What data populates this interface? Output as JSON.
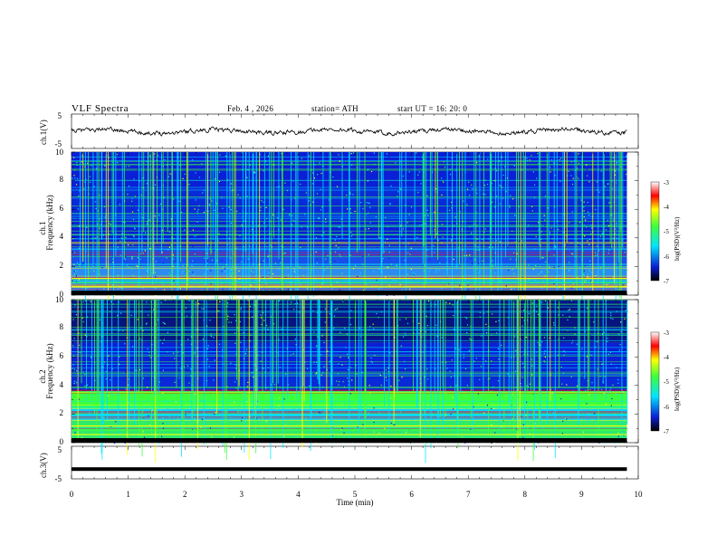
{
  "header": {
    "title": "VLF  Spectra",
    "date": "Feb. 4  , 2026",
    "station": "station= ATH",
    "start": "start  UT  =    16: 20: 0"
  },
  "chart_data": [
    {
      "type": "line",
      "title": "",
      "ylabel": "ch.1(V)",
      "ylim": [
        -5,
        5
      ],
      "yticks": [
        "5",
        "-5"
      ],
      "xlim": [
        0,
        10
      ],
      "series_mean": 0,
      "description_values": [
        0.3,
        0.2,
        -0.1,
        0.4,
        0.1,
        -0.3,
        0.2,
        0.0,
        0.5,
        -0.2,
        0.3,
        0.1
      ]
    },
    {
      "type": "heatmap",
      "title": "",
      "ylabel": "Frequency  (kHz)",
      "channel_label": "ch.1",
      "ylim": [
        0,
        10
      ],
      "yticks": [
        "0",
        "2",
        "4",
        "6",
        "8",
        "10"
      ],
      "xlim": [
        0,
        10
      ],
      "colorbar": {
        "label": "log(PSD)(V²/Hz)",
        "range": [
          -7,
          -3
        ],
        "ticks": [
          "-3",
          "-4",
          "-5",
          "-6",
          "-7"
        ]
      }
    },
    {
      "type": "heatmap",
      "title": "",
      "ylabel": "Frequency  (kHz)",
      "channel_label": "ch.2",
      "ylim": [
        0,
        10
      ],
      "yticks": [
        "0",
        "2",
        "4",
        "6",
        "8",
        "10"
      ],
      "xlim": [
        0,
        10
      ],
      "colorbar": {
        "label": "log(PSD)(V²/Hz)",
        "range": [
          -7,
          -3
        ],
        "ticks": [
          "-3",
          "-4",
          "-5",
          "-6",
          "-7"
        ]
      }
    },
    {
      "type": "line",
      "title": "",
      "ylabel": "ch.3(V)",
      "ylim": [
        -5,
        5
      ],
      "yticks": [
        "5",
        "-5"
      ],
      "xlim": [
        0,
        10
      ],
      "constant_value": -2,
      "xlabel": "Time  (min)",
      "xticks": [
        "0",
        "1",
        "2",
        "3",
        "4",
        "5",
        "6",
        "7",
        "8",
        "9",
        "10"
      ]
    }
  ],
  "colors": {
    "low": "#000000",
    "mid": "#0a1fd6",
    "cyan": "#00e5ff",
    "green": "#3cff3c",
    "yellow": "#ffff00",
    "red": "#ff0000",
    "max": "#ffffff"
  }
}
